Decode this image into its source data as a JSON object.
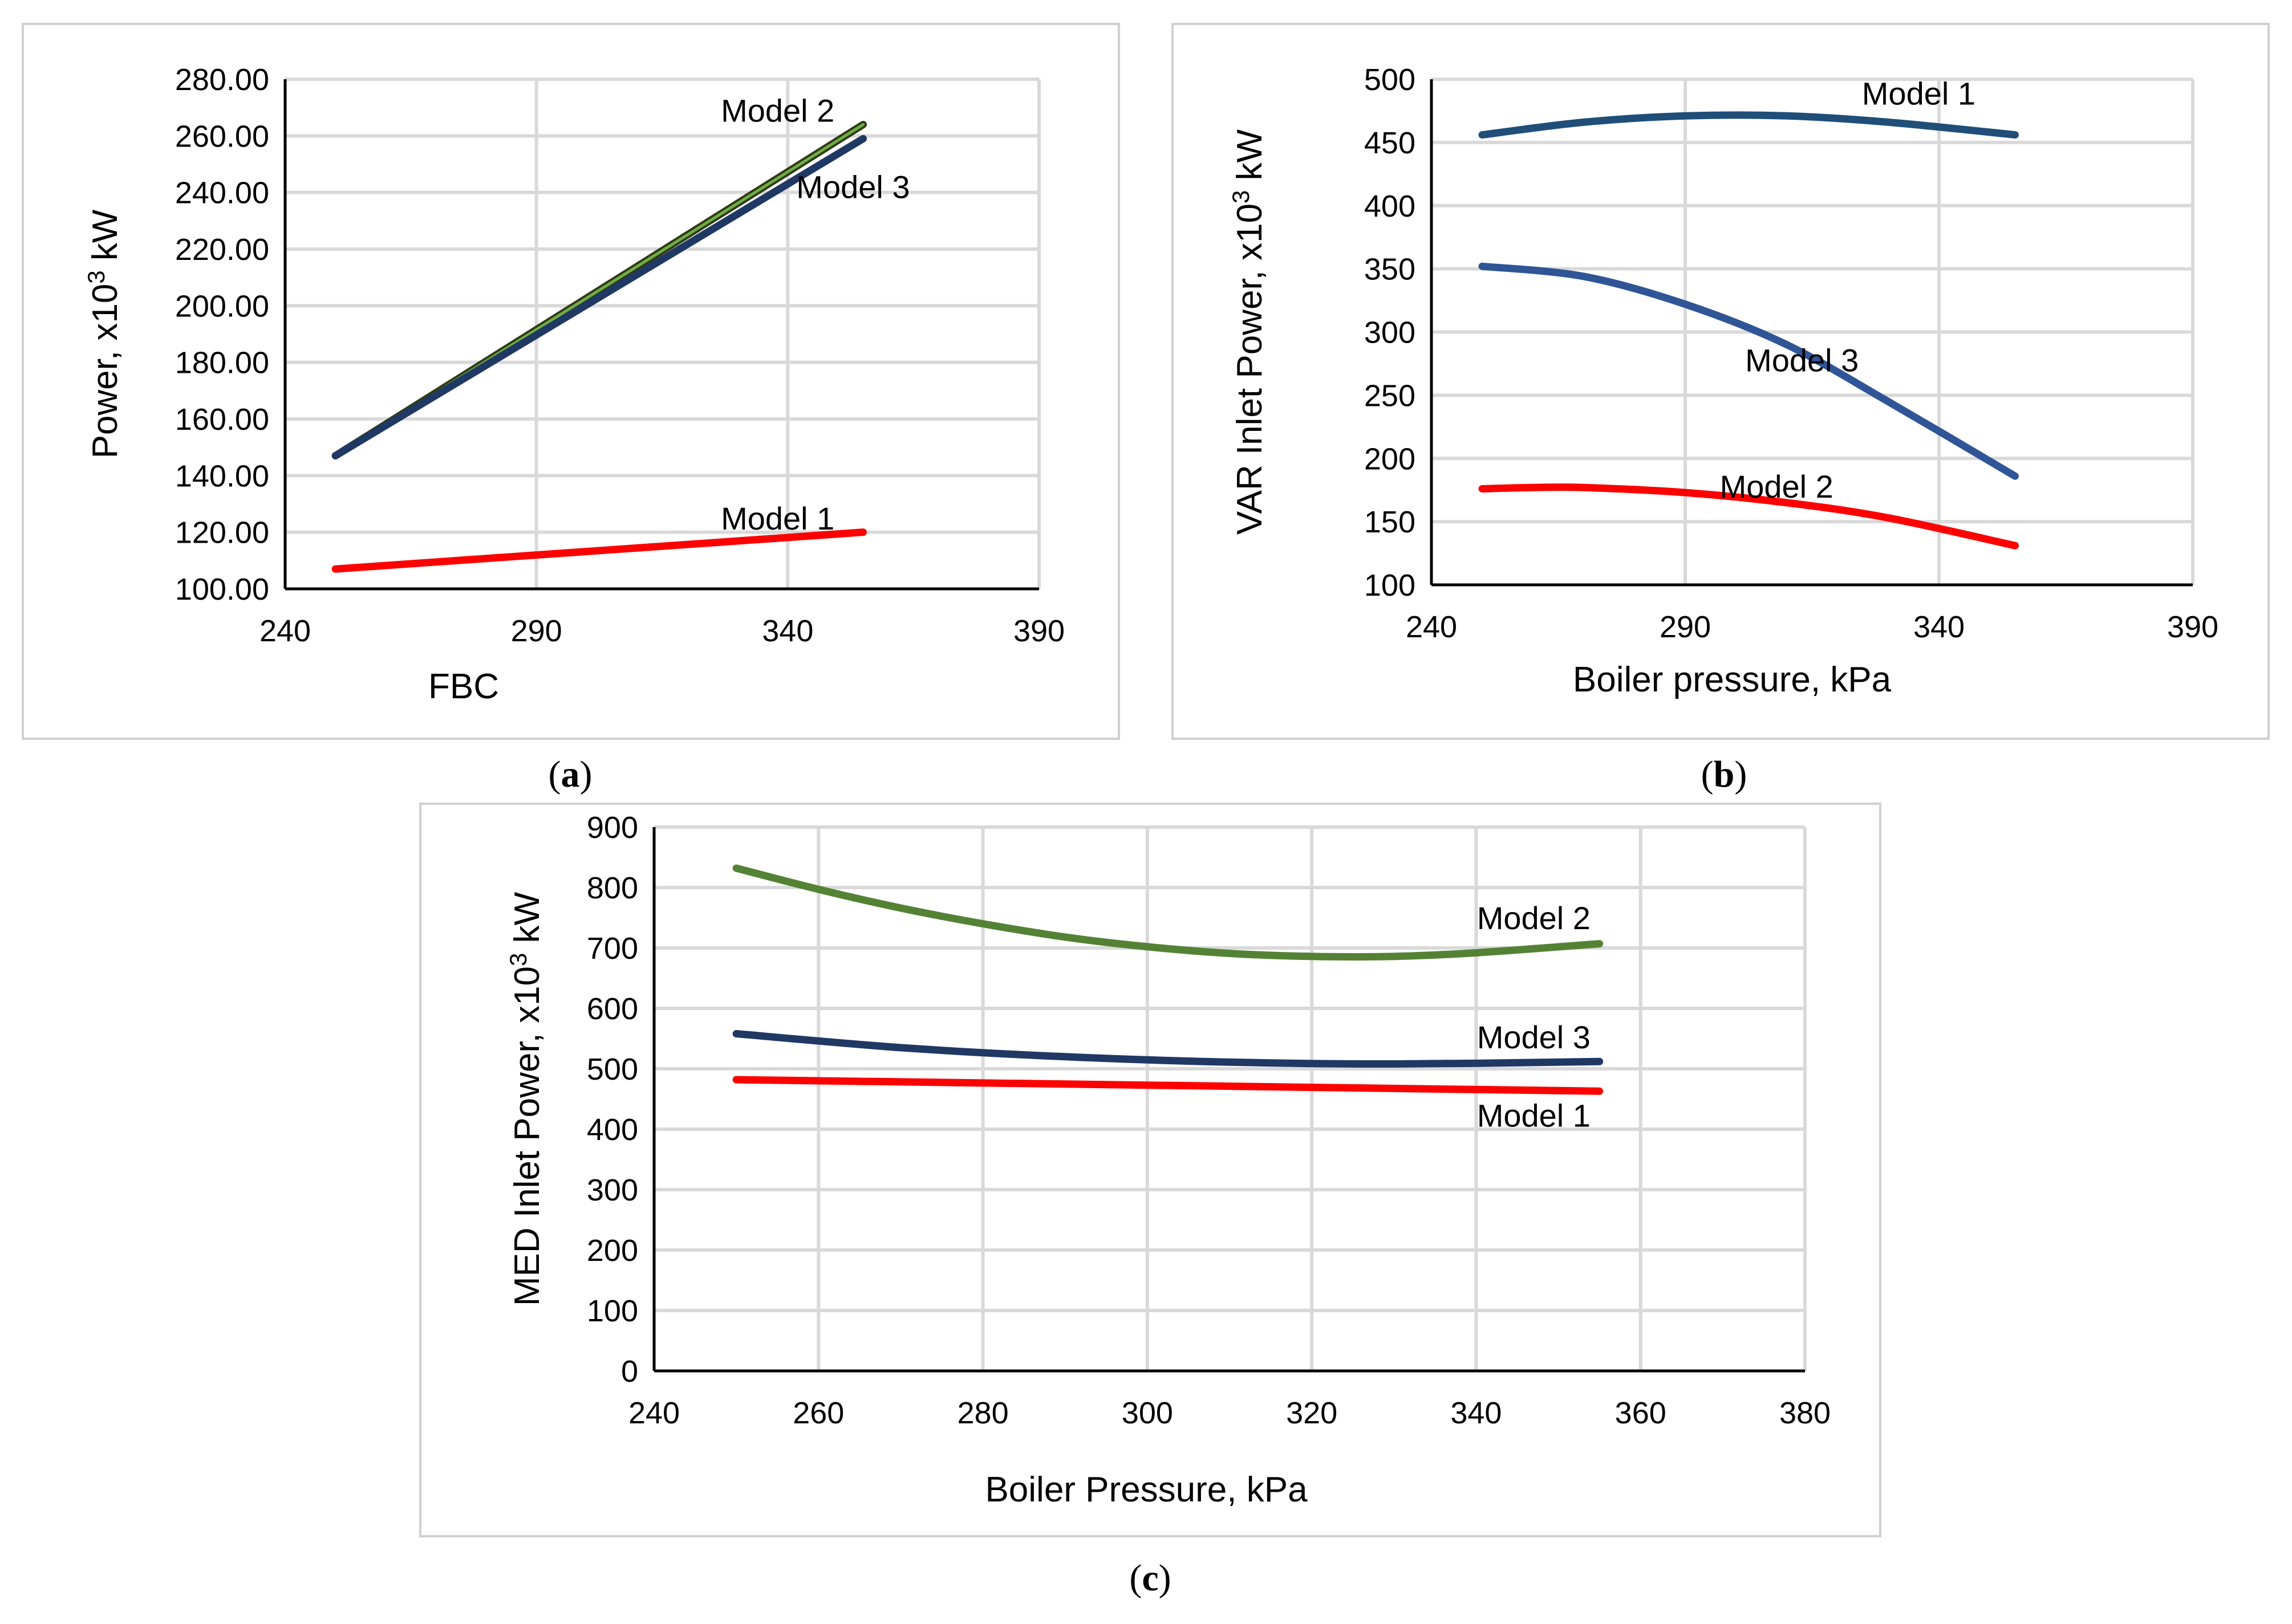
{
  "chart_data": [
    {
      "id": "a",
      "type": "line",
      "caption_letter": "a",
      "xlabel": "FBC",
      "ylabel_prefix": "Power, x10",
      "ylabel_sup": "3",
      "ylabel_suffix": " kW",
      "xlim": [
        240,
        390
      ],
      "ylim": [
        100,
        280
      ],
      "xticks": [
        240,
        290,
        340,
        390
      ],
      "xtick_labels": [
        "240",
        "290",
        "340",
        "390"
      ],
      "yticks": [
        100,
        120,
        140,
        160,
        180,
        200,
        220,
        240,
        260,
        280
      ],
      "ytick_labels": [
        "100.00",
        "120.00",
        "140.00",
        "160.00",
        "180.00",
        "200.00",
        "220.00",
        "240.00",
        "260.00",
        "280.00"
      ],
      "grid": true,
      "series": [
        {
          "name": "Model 2",
          "color": "#2f3a14",
          "highlight": "#70ad47",
          "x": [
            250,
            355
          ],
          "y": [
            147,
            264
          ]
        },
        {
          "name": "Model 3",
          "color": "#1f3864",
          "x": [
            250,
            355
          ],
          "y": [
            147,
            259
          ]
        },
        {
          "name": "Model 1",
          "color": "#ff0000",
          "x": [
            250,
            355
          ],
          "y": [
            107,
            120
          ]
        }
      ],
      "annotations": [
        {
          "text": "Model 2",
          "x": 338,
          "y": 269
        },
        {
          "text": "Model 3",
          "x": 353,
          "y": 242
        },
        {
          "text": "Model 1",
          "x": 338,
          "y": 125
        }
      ]
    },
    {
      "id": "b",
      "type": "line",
      "caption_letter": "b",
      "xlabel": "Boiler pressure, kPa",
      "ylabel_prefix": "VAR Inlet  Power, x10",
      "ylabel_sup": "3",
      "ylabel_suffix": " kW",
      "xlim": [
        240,
        390
      ],
      "ylim": [
        100,
        500
      ],
      "xticks": [
        240,
        290,
        340,
        390
      ],
      "xtick_labels": [
        "240",
        "290",
        "340",
        "390"
      ],
      "yticks": [
        100,
        150,
        200,
        250,
        300,
        350,
        400,
        450,
        500
      ],
      "ytick_labels": [
        "100",
        "150",
        "200",
        "250",
        "300",
        "350",
        "400",
        "450",
        "500"
      ],
      "grid": true,
      "series": [
        {
          "name": "Model 1",
          "color": "#1f4e79",
          "x": [
            250,
            270,
            290,
            310,
            330,
            355
          ],
          "y": [
            456,
            466,
            471,
            471,
            466,
            456
          ]
        },
        {
          "name": "Model 3",
          "color": "#2f5597",
          "x": [
            250,
            270,
            290,
            310,
            330,
            355
          ],
          "y": [
            352,
            344,
            322,
            290,
            245,
            186
          ]
        },
        {
          "name": "Model 2",
          "color": "#ff0000",
          "x": [
            250,
            260,
            270,
            290,
            310,
            330,
            355
          ],
          "y": [
            176,
            177,
            177,
            173,
            165,
            153,
            131
          ]
        }
      ],
      "annotations": [
        {
          "text": "Model 1",
          "x": 336,
          "y": 489
        },
        {
          "text": "Model 3",
          "x": 313,
          "y": 278
        },
        {
          "text": "Model 2",
          "x": 308,
          "y": 178
        }
      ]
    },
    {
      "id": "c",
      "type": "line",
      "caption_letter": "c",
      "xlabel": "Boiler Pressure, kPa",
      "ylabel_prefix": "MED Inlet  Power, x10",
      "ylabel_sup": "3",
      "ylabel_suffix": " kW",
      "xlim": [
        240,
        380
      ],
      "ylim": [
        0,
        900
      ],
      "xticks": [
        240,
        260,
        280,
        300,
        320,
        340,
        360,
        380
      ],
      "xtick_labels": [
        "240",
        "260",
        "280",
        "300",
        "320",
        "340",
        "360",
        "380"
      ],
      "yticks": [
        0,
        100,
        200,
        300,
        400,
        500,
        600,
        700,
        800,
        900
      ],
      "ytick_labels": [
        "0",
        "100",
        "200",
        "300",
        "400",
        "500",
        "600",
        "700",
        "800",
        "900"
      ],
      "grid": true,
      "series": [
        {
          "name": "Model 2",
          "color": "#548235",
          "x": [
            250,
            260,
            270,
            280,
            290,
            300,
            310,
            320,
            330,
            340,
            355
          ],
          "y": [
            832,
            797,
            766,
            740,
            718,
            702,
            691,
            686,
            686,
            692,
            707
          ]
        },
        {
          "name": "Model 3",
          "color": "#203864",
          "x": [
            250,
            270,
            290,
            310,
            330,
            355
          ],
          "y": [
            558,
            535,
            520,
            511,
            508,
            512
          ]
        },
        {
          "name": "Model 1",
          "color": "#ff0000",
          "x": [
            250,
            355
          ],
          "y": [
            482,
            463
          ]
        }
      ],
      "annotations": [
        {
          "text": "Model 2",
          "x": 347,
          "y": 750
        },
        {
          "text": "Model 3",
          "x": 347,
          "y": 553
        },
        {
          "text": "Model 1",
          "x": 347,
          "y": 423
        }
      ]
    }
  ]
}
